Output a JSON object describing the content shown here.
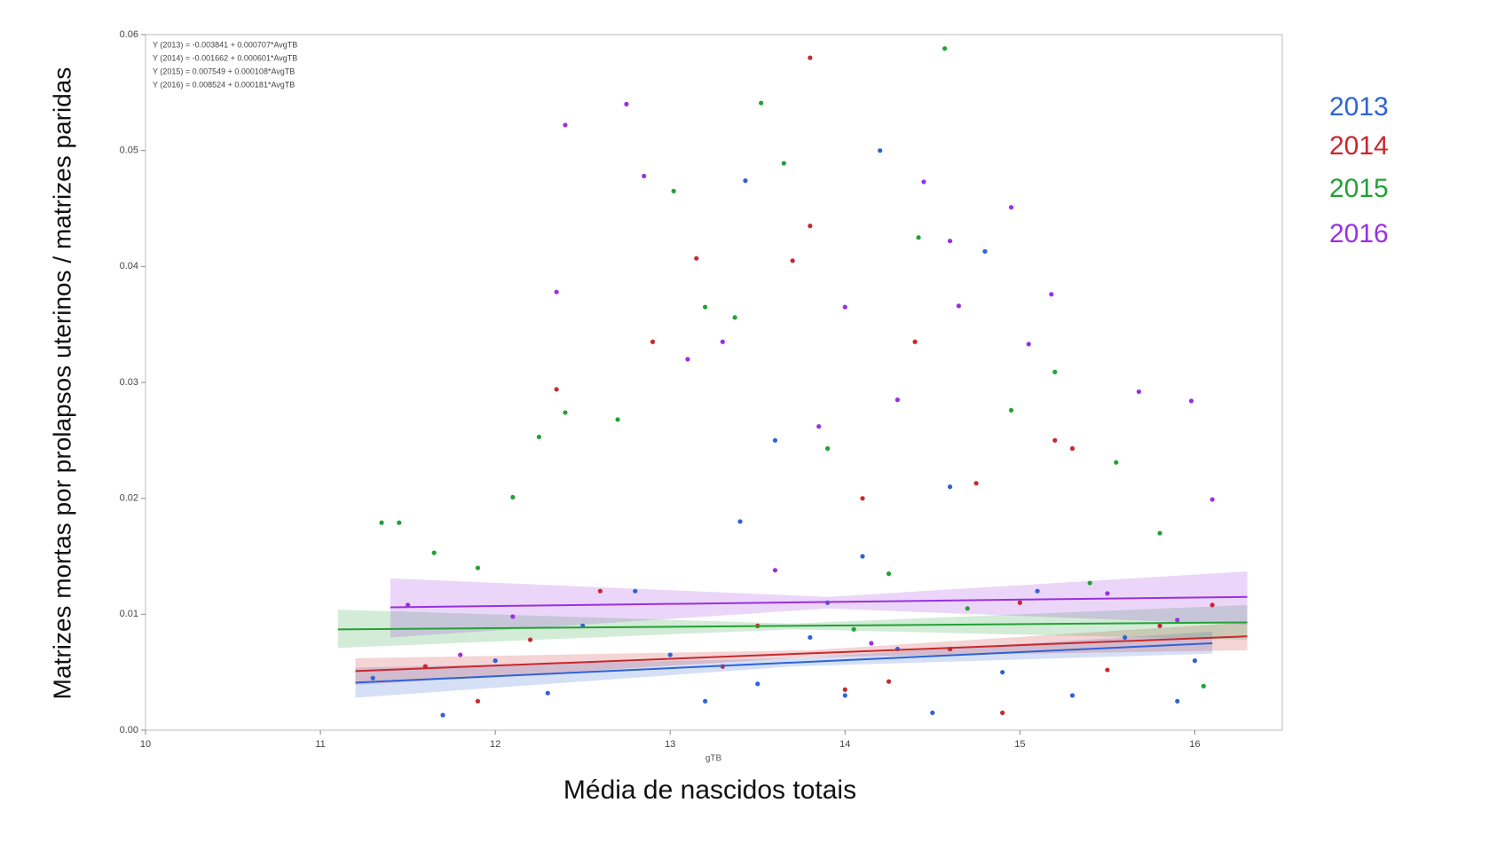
{
  "chart_data": {
    "type": "scatter",
    "x_label": "Média de nascidos totais",
    "x_sublabel": "gTB",
    "y_label": "Matrizes mortas por prolapsos uterinos / matrizes paridas",
    "annotations": [
      "Y (2013) = -0.003841 + 0.000707*AvgTB",
      "Y (2014) = -0.001662 + 0.000601*AvgTB",
      "Y (2015) = 0.007549 + 0.000108*AvgTB",
      "Y (2016) = 0.008524 + 0.000181*AvgTB"
    ],
    "xlim": [
      10,
      16.5
    ],
    "xticks": [
      10,
      11,
      12,
      13,
      14,
      15,
      16
    ],
    "ylim": [
      0,
      0.06
    ],
    "yticks": [
      {
        "value": 0,
        "label": "0.00"
      },
      0.01,
      0.02,
      0.03,
      0.04,
      0.05,
      0.06
    ],
    "legend": "right",
    "series": [
      {
        "name": "2013",
        "color": "#2f62d6",
        "x": [
          11.3,
          11.7,
          12.0,
          12.3,
          12.5,
          12.8,
          13.0,
          13.2,
          13.4,
          13.43,
          13.5,
          13.6,
          13.8,
          13.9,
          14.0,
          14.1,
          14.2,
          14.3,
          14.5,
          14.6,
          14.8,
          14.9,
          15.1,
          15.3,
          15.6,
          15.9,
          16.0
        ],
        "values": [
          0.0045,
          0.0013,
          0.006,
          0.0032,
          0.009,
          0.012,
          0.0065,
          0.0025,
          0.018,
          0.0474,
          0.004,
          0.025,
          0.008,
          0.011,
          0.003,
          0.015,
          0.05,
          0.007,
          0.0015,
          0.021,
          0.0413,
          0.005,
          0.012,
          0.003,
          0.008,
          0.0025,
          0.006
        ],
        "fit_x": [
          11.2,
          16.1
        ],
        "fit_y": [
          0.0041,
          0.0075
        ],
        "band_x": [
          11.2,
          13.7,
          16.1
        ],
        "band_lower": [
          0.0028,
          0.0055,
          0.0066
        ],
        "band_upper": [
          0.0054,
          0.0062,
          0.0085
        ]
      },
      {
        "name": "2014",
        "color": "#c8282e",
        "x": [
          11.6,
          11.9,
          12.2,
          12.35,
          12.6,
          12.9,
          13.15,
          13.3,
          13.5,
          13.7,
          13.8,
          13.8,
          14.0,
          14.1,
          14.25,
          14.4,
          14.6,
          14.75,
          14.9,
          15.0,
          15.2,
          15.3,
          15.5,
          15.8,
          16.1
        ],
        "values": [
          0.0055,
          0.0025,
          0.0078,
          0.0294,
          0.012,
          0.0335,
          0.0407,
          0.0055,
          0.009,
          0.0405,
          0.058,
          0.0435,
          0.0035,
          0.02,
          0.0042,
          0.0335,
          0.007,
          0.0213,
          0.0015,
          0.011,
          0.025,
          0.0243,
          0.0052,
          0.009,
          0.0108
        ],
        "fit_x": [
          11.2,
          16.3
        ],
        "fit_y": [
          0.0051,
          0.0081
        ],
        "band_x": [
          11.2,
          13.8,
          16.3
        ],
        "band_lower": [
          0.0039,
          0.0063,
          0.0069
        ],
        "band_upper": [
          0.0062,
          0.0069,
          0.0093
        ]
      },
      {
        "name": "2015",
        "color": "#23a136",
        "x": [
          11.35,
          11.45,
          11.65,
          11.9,
          12.1,
          12.25,
          12.4,
          12.7,
          13.02,
          13.2,
          13.37,
          13.52,
          13.65,
          13.9,
          14.05,
          14.25,
          14.42,
          14.57,
          14.7,
          14.95,
          15.2,
          15.4,
          15.55,
          15.8,
          16.05
        ],
        "values": [
          0.0179,
          0.0179,
          0.0153,
          0.014,
          0.0201,
          0.0253,
          0.0274,
          0.0268,
          0.0465,
          0.0365,
          0.0356,
          0.0541,
          0.0489,
          0.0243,
          0.0087,
          0.0135,
          0.0425,
          0.0588,
          0.0105,
          0.0276,
          0.0309,
          0.0127,
          0.0231,
          0.017,
          0.0038
        ],
        "fit_x": [
          11.1,
          16.3
        ],
        "fit_y": [
          0.0087,
          0.0093
        ],
        "band_x": [
          11.1,
          13.7,
          16.3
        ],
        "band_lower": [
          0.0071,
          0.0087,
          0.0078
        ],
        "band_upper": [
          0.0104,
          0.0092,
          0.0108
        ]
      },
      {
        "name": "2016",
        "color": "#9a30e0",
        "x": [
          11.5,
          11.8,
          12.1,
          12.35,
          12.4,
          12.75,
          12.85,
          13.1,
          13.3,
          13.6,
          13.85,
          14.0,
          14.15,
          14.3,
          14.45,
          14.6,
          14.65,
          14.95,
          15.05,
          15.18,
          15.5,
          15.68,
          15.9,
          15.98,
          16.1
        ],
        "values": [
          0.0108,
          0.0065,
          0.0098,
          0.0378,
          0.0522,
          0.054,
          0.0478,
          0.032,
          0.0335,
          0.0138,
          0.0262,
          0.0365,
          0.0075,
          0.0285,
          0.0473,
          0.0422,
          0.0366,
          0.0451,
          0.0333,
          0.0376,
          0.0118,
          0.0292,
          0.0095,
          0.0284,
          0.0199
        ],
        "fit_x": [
          11.4,
          16.3
        ],
        "fit_y": [
          0.0106,
          0.0115
        ],
        "band_x": [
          11.4,
          13.9,
          16.3
        ],
        "band_lower": [
          0.008,
          0.0105,
          0.0091
        ],
        "band_upper": [
          0.0131,
          0.0115,
          0.0137
        ]
      }
    ]
  }
}
